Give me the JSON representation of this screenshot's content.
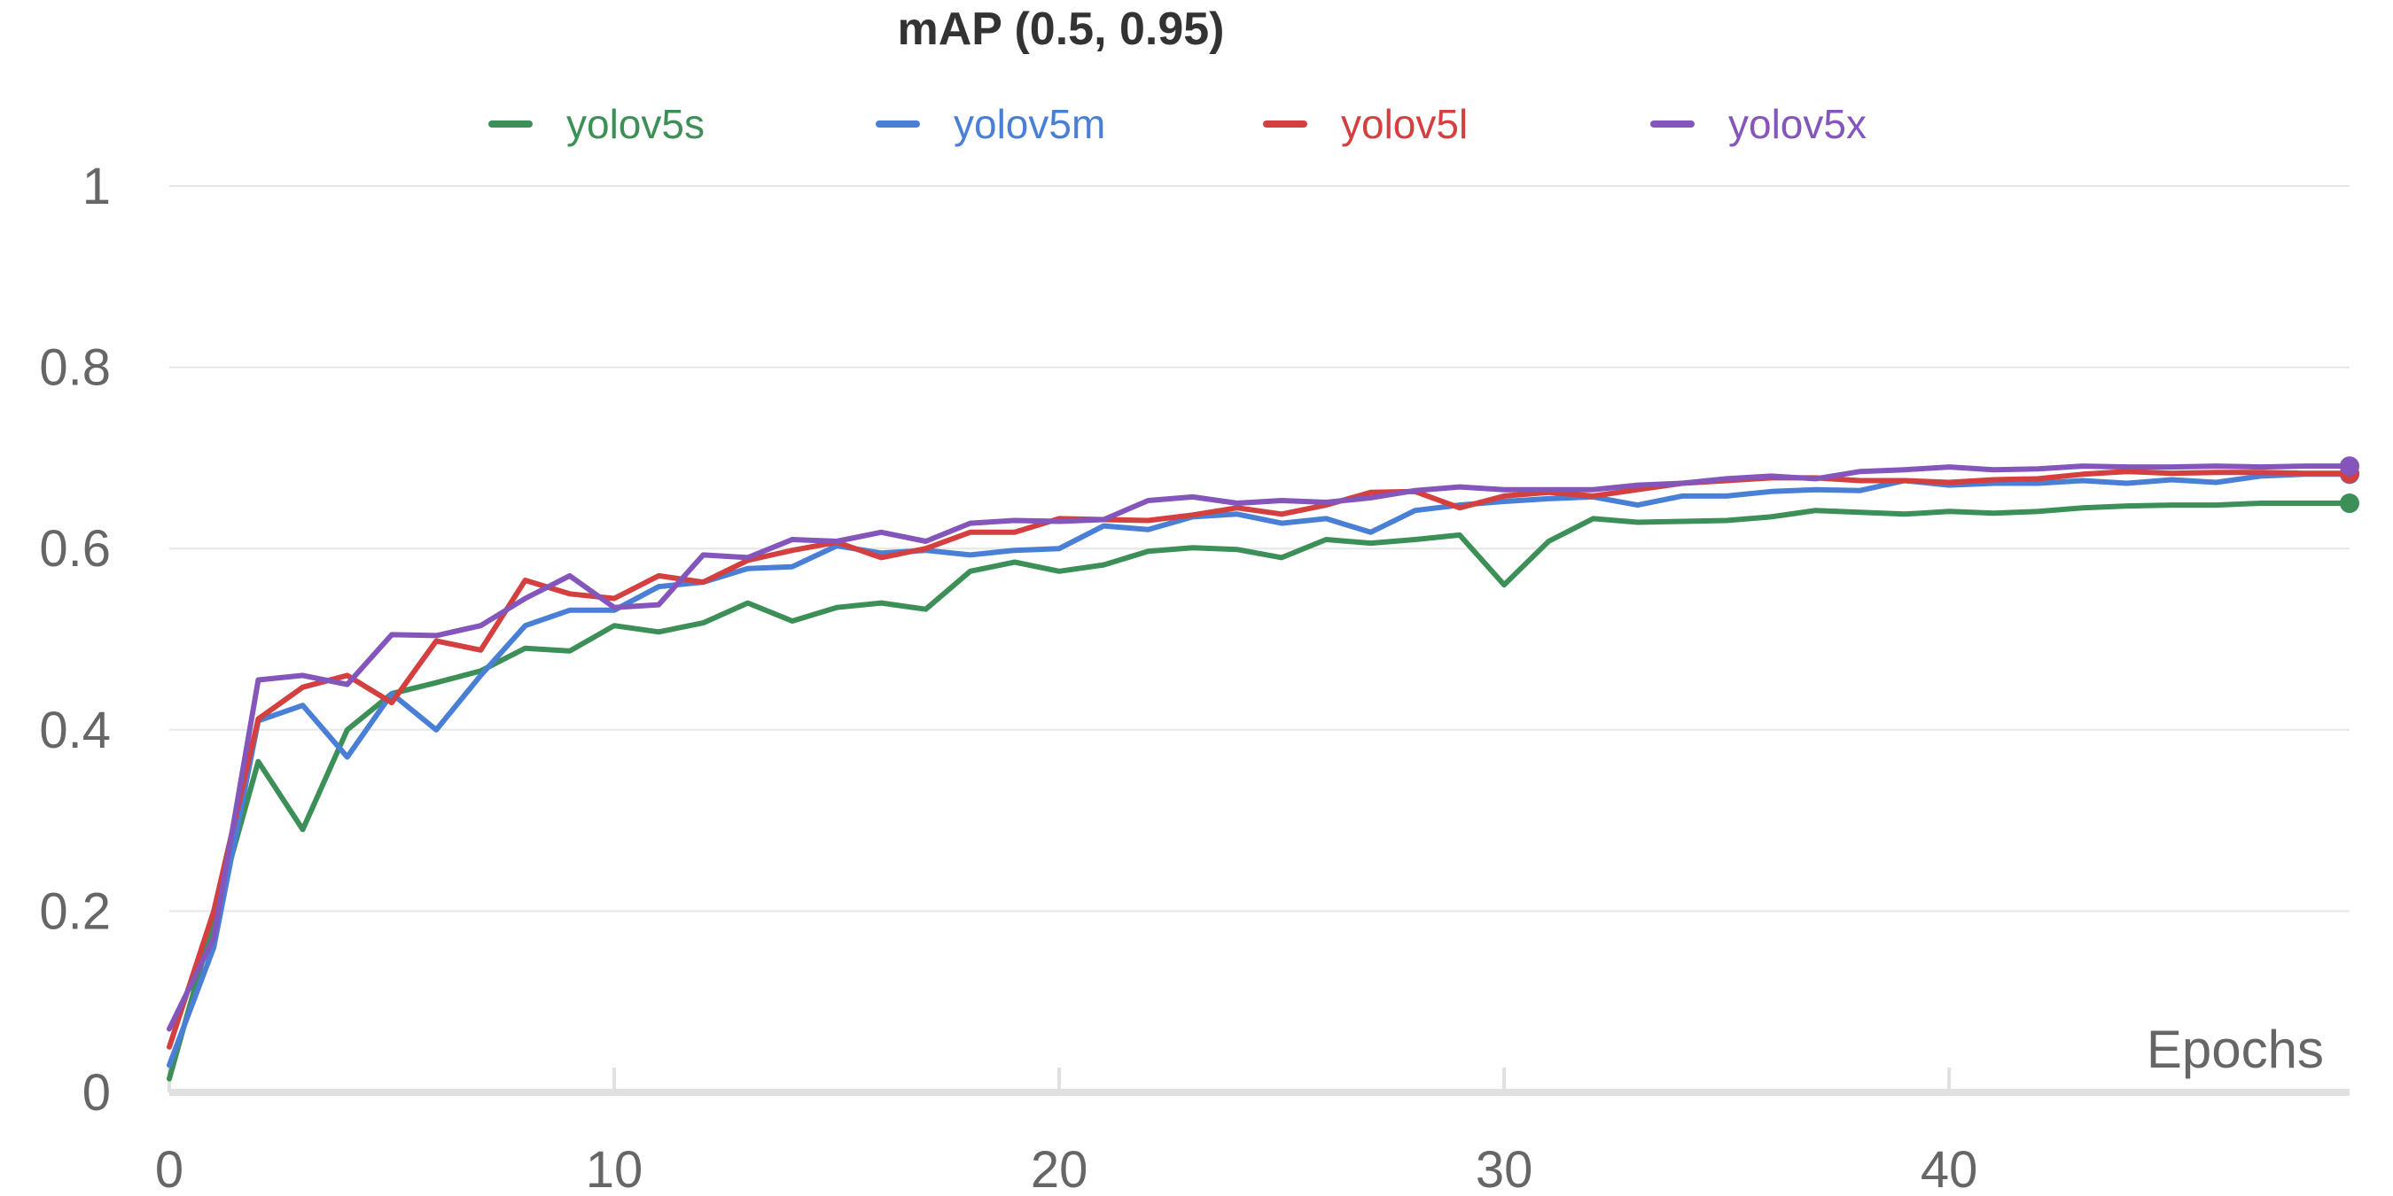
{
  "chart_data": {
    "type": "line",
    "title": "mAP (0.5, 0.95)",
    "xlabel": "Epochs",
    "ylabel": "",
    "xlim": [
      0,
      49
    ],
    "ylim": [
      0,
      1
    ],
    "x_ticks": [
      0,
      10,
      20,
      30,
      40
    ],
    "y_ticks": [
      0,
      0.2,
      0.4,
      0.6,
      0.8,
      1
    ],
    "y_tick_labels": [
      "0",
      "0.2",
      "0.4",
      "0.6",
      "0.8",
      "1"
    ],
    "x_tick_labels": [
      "0",
      "10",
      "20",
      "30",
      "40"
    ],
    "grid": true,
    "legend_position": "top",
    "x": [
      0,
      1,
      2,
      3,
      4,
      5,
      6,
      7,
      8,
      9,
      10,
      11,
      12,
      13,
      14,
      15,
      16,
      17,
      18,
      19,
      20,
      21,
      22,
      23,
      24,
      25,
      26,
      27,
      28,
      29,
      30,
      31,
      32,
      33,
      34,
      35,
      36,
      37,
      38,
      39,
      40,
      41,
      42,
      43,
      44,
      45,
      46,
      47,
      48,
      49
    ],
    "series": [
      {
        "name": "yolov5s",
        "color": "#3d8f58",
        "values": [
          0.015,
          0.19,
          0.365,
          0.29,
          0.4,
          0.44,
          0.452,
          0.465,
          0.49,
          0.487,
          0.515,
          0.508,
          0.518,
          0.54,
          0.52,
          0.535,
          0.54,
          0.533,
          0.575,
          0.585,
          0.575,
          0.582,
          0.597,
          0.601,
          0.599,
          0.59,
          0.61,
          0.606,
          0.61,
          0.615,
          0.56,
          0.608,
          0.633,
          0.629,
          0.63,
          0.631,
          0.635,
          0.642,
          0.64,
          0.638,
          0.641,
          0.639,
          0.641,
          0.645,
          0.647,
          0.648,
          0.648,
          0.65,
          0.65,
          0.65
        ]
      },
      {
        "name": "yolov5m",
        "color": "#4a7fd6",
        "values": [
          0.03,
          0.16,
          0.41,
          0.427,
          0.37,
          0.44,
          0.4,
          0.46,
          0.515,
          0.532,
          0.532,
          0.558,
          0.563,
          0.578,
          0.58,
          0.603,
          0.595,
          0.598,
          0.593,
          0.598,
          0.6,
          0.625,
          0.621,
          0.635,
          0.638,
          0.628,
          0.633,
          0.618,
          0.642,
          0.648,
          0.652,
          0.655,
          0.657,
          0.648,
          0.658,
          0.658,
          0.663,
          0.665,
          0.664,
          0.675,
          0.67,
          0.672,
          0.672,
          0.675,
          0.672,
          0.676,
          0.673,
          0.68,
          0.682,
          0.682
        ]
      },
      {
        "name": "yolov5l",
        "color": "#d43f3f",
        "values": [
          0.05,
          0.2,
          0.412,
          0.447,
          0.46,
          0.43,
          0.498,
          0.488,
          0.565,
          0.55,
          0.545,
          0.57,
          0.563,
          0.587,
          0.598,
          0.607,
          0.59,
          0.6,
          0.618,
          0.618,
          0.633,
          0.632,
          0.631,
          0.637,
          0.645,
          0.638,
          0.648,
          0.662,
          0.663,
          0.645,
          0.658,
          0.662,
          0.658,
          0.665,
          0.672,
          0.675,
          0.678,
          0.678,
          0.675,
          0.675,
          0.673,
          0.676,
          0.677,
          0.682,
          0.685,
          0.683,
          0.684,
          0.684,
          0.683,
          0.683
        ]
      },
      {
        "name": "yolov5x",
        "color": "#8455bb",
        "values": [
          0.07,
          0.17,
          0.455,
          0.46,
          0.45,
          0.505,
          0.504,
          0.515,
          0.545,
          0.57,
          0.535,
          0.538,
          0.593,
          0.59,
          0.61,
          0.608,
          0.618,
          0.608,
          0.628,
          0.631,
          0.63,
          0.632,
          0.653,
          0.657,
          0.65,
          0.653,
          0.651,
          0.656,
          0.664,
          0.668,
          0.665,
          0.665,
          0.665,
          0.67,
          0.672,
          0.677,
          0.68,
          0.677,
          0.685,
          0.687,
          0.69,
          0.687,
          0.688,
          0.691,
          0.69,
          0.69,
          0.691,
          0.69,
          0.691,
          0.691
        ]
      }
    ]
  }
}
